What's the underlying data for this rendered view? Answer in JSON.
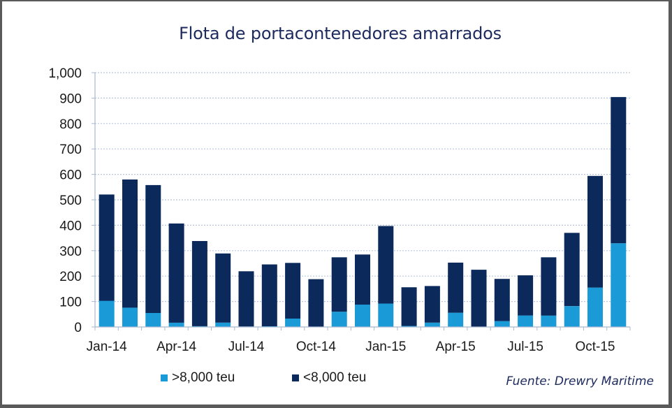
{
  "chart_data": {
    "type": "bar",
    "stacked": true,
    "title": "Flota de portacontenedores amarrados",
    "xlabel": "",
    "ylabel": "",
    "ylim": [
      0,
      1000
    ],
    "yticks": [
      "0",
      "100",
      "200",
      "300",
      "400",
      "500",
      "600",
      "700",
      "800",
      "900",
      "1,000"
    ],
    "ytick_values": [
      0,
      100,
      200,
      300,
      400,
      500,
      600,
      700,
      800,
      900,
      1000
    ],
    "grid": true,
    "categories": [
      "Jan-14",
      "Feb-14",
      "Mar-14",
      "Apr-14",
      "May-14",
      "Jun-14",
      "Jul-14",
      "Aug-14",
      "Sep-14",
      "Oct-14",
      "Nov-14",
      "Dec-14",
      "Jan-15",
      "Feb-15",
      "Mar-15",
      "Apr-15",
      "May-15",
      "Jun-15",
      "Jul-15",
      "Aug-15",
      "Sep-15",
      "Oct-15",
      "Nov-15"
    ],
    "xtick_labels": [
      "Jan-14",
      "Apr-14",
      "Jul-14",
      "Oct-14",
      "Jan-15",
      "Apr-15",
      "Jul-15",
      "Oct-15"
    ],
    "xtick_label_indices": [
      0,
      3,
      6,
      9,
      12,
      15,
      18,
      21
    ],
    "series": [
      {
        "name": ">8,000 teu",
        "color": "#1a9ad6",
        "values": [
          103,
          76,
          55,
          17,
          3,
          17,
          2,
          3,
          33,
          0,
          60,
          88,
          92,
          4,
          17,
          56,
          0,
          23,
          45,
          45,
          82,
          155,
          329
        ]
      },
      {
        "name": "<8,000 teu",
        "color": "#0b2a5b",
        "values": [
          418,
          504,
          503,
          390,
          335,
          272,
          217,
          243,
          219,
          188,
          214,
          197,
          305,
          152,
          144,
          197,
          225,
          166,
          158,
          229,
          288,
          439,
          575
        ]
      }
    ],
    "totals": [
      521,
      580,
      558,
      407,
      338,
      289,
      219,
      246,
      252,
      188,
      274,
      285,
      397,
      156,
      161,
      253,
      225,
      189,
      203,
      274,
      370,
      594,
      904
    ],
    "legend": "bottom-left"
  },
  "source": "Fuente: Drewry Maritime"
}
